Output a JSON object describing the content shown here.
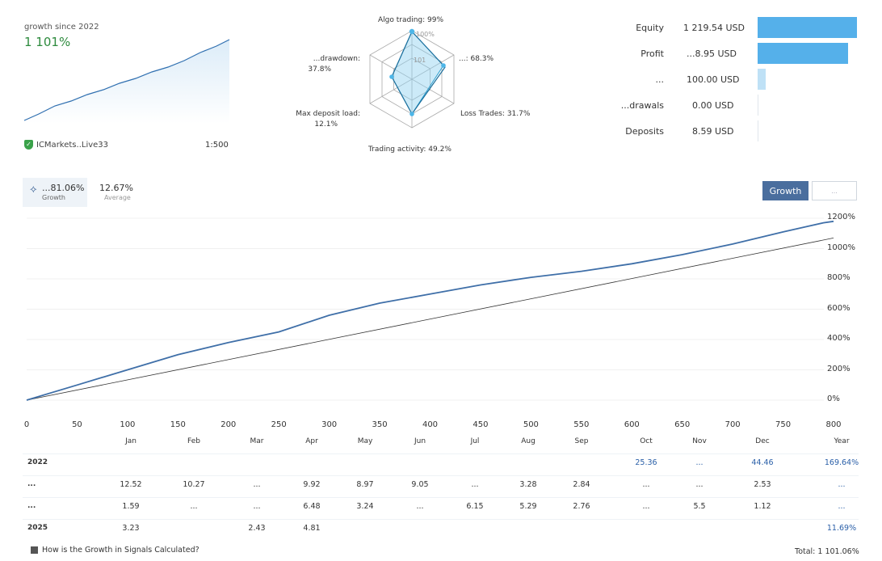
{
  "summary": {
    "growth_since_label": "growth since 2022",
    "growth_value": "1 101%",
    "broker": "ICMarkets..Live33",
    "leverage": "1:500"
  },
  "radar": {
    "algo": "Algo trading: 99%",
    "profit_trades": "...: 68.3%",
    "loss_trades": "Loss Trades: 31.7%",
    "activity": "Trading activity: 49.2%",
    "deposit_load": "Max deposit load:",
    "deposit_load_val": "12.1%",
    "drawdown": "...drawdown:",
    "drawdown_val": "37.8%",
    "center_label_1": "100%",
    "center_label_2": "101"
  },
  "stats": [
    {
      "label": "Equity",
      "value": "1 219.54 USD",
      "fraction": 1.0
    },
    {
      "label": "Profit",
      "value": "...8.95 USD",
      "fraction": 0.91
    },
    {
      "label": "...",
      "value": "100.00 USD",
      "fraction": 0.08
    },
    {
      "label": "...drawals",
      "value": "0.00 USD",
      "fraction": 0.0
    },
    {
      "label": "Deposits",
      "value": "8.59 USD",
      "fraction": 0.0
    }
  ],
  "tabs": {
    "growth_value": "...81.06%",
    "growth_label": "Growth",
    "average_value": "12.67%",
    "average_label": "Average",
    "btn_growth": "Growth",
    "btn_other": "..."
  },
  "chart_data": {
    "type": "line",
    "x_ticks": [
      "0",
      "50",
      "100",
      "150",
      "200",
      "250",
      "300",
      "350",
      "400",
      "450",
      "500",
      "550",
      "600",
      "650",
      "700",
      "750",
      "800"
    ],
    "y_ticks": [
      "1200%",
      "1000%",
      "800%",
      "600%",
      "400%",
      "200%",
      "0%"
    ],
    "xlim": [
      0,
      800
    ],
    "ylim": [
      0,
      1200
    ],
    "series": [
      {
        "x": [
          0,
          50,
          100,
          150,
          200,
          250,
          300,
          350,
          400,
          450,
          500,
          550,
          600,
          650,
          700,
          750,
          770,
          790,
          800
        ],
        "y": [
          0,
          100,
          200,
          300,
          380,
          450,
          560,
          640,
          700,
          760,
          810,
          850,
          900,
          960,
          1030,
          1110,
          1140,
          1170,
          1180
        ]
      },
      {
        "x": [
          0,
          800
        ],
        "y": [
          0,
          1070
        ]
      }
    ]
  },
  "monthly": {
    "months": [
      "Jan",
      "Feb",
      "Mar",
      "Apr",
      "May",
      "Jun",
      "Jul",
      "Aug",
      "Sep",
      "Oct",
      "Nov",
      "Dec",
      "Year"
    ],
    "rows": [
      {
        "year": "2022",
        "cells": [
          "",
          "",
          "",
          "",
          "",
          "",
          "",
          "",
          "",
          "25.36",
          "...",
          "44.46",
          "169.64%"
        ]
      },
      {
        "year": "...",
        "cells": [
          "12.52",
          "10.27",
          "...",
          "9.92",
          "8.97",
          "9.05",
          "...",
          "3.28",
          "2.84",
          "...",
          "...",
          "2.53",
          "..."
        ]
      },
      {
        "year": "...",
        "cells": [
          "1.59",
          "...",
          "...",
          "6.48",
          "3.24",
          "...",
          "6.15",
          "5.29",
          "2.76",
          "...",
          "5.5",
          "1.12",
          "..."
        ]
      },
      {
        "year": "2025",
        "cells": [
          "3.23",
          "",
          "2.43",
          "4.81",
          "",
          "",
          "",
          "",
          "",
          "",
          "",
          "",
          "11.69%"
        ]
      }
    ]
  },
  "footer": {
    "link": "How is the Growth in Signals Calculated?",
    "total": "Total: 1 101.06%"
  },
  "colors": {
    "accent": "#4a6e9e",
    "bar": "#55b0ea",
    "line": "#3f6fa8"
  }
}
